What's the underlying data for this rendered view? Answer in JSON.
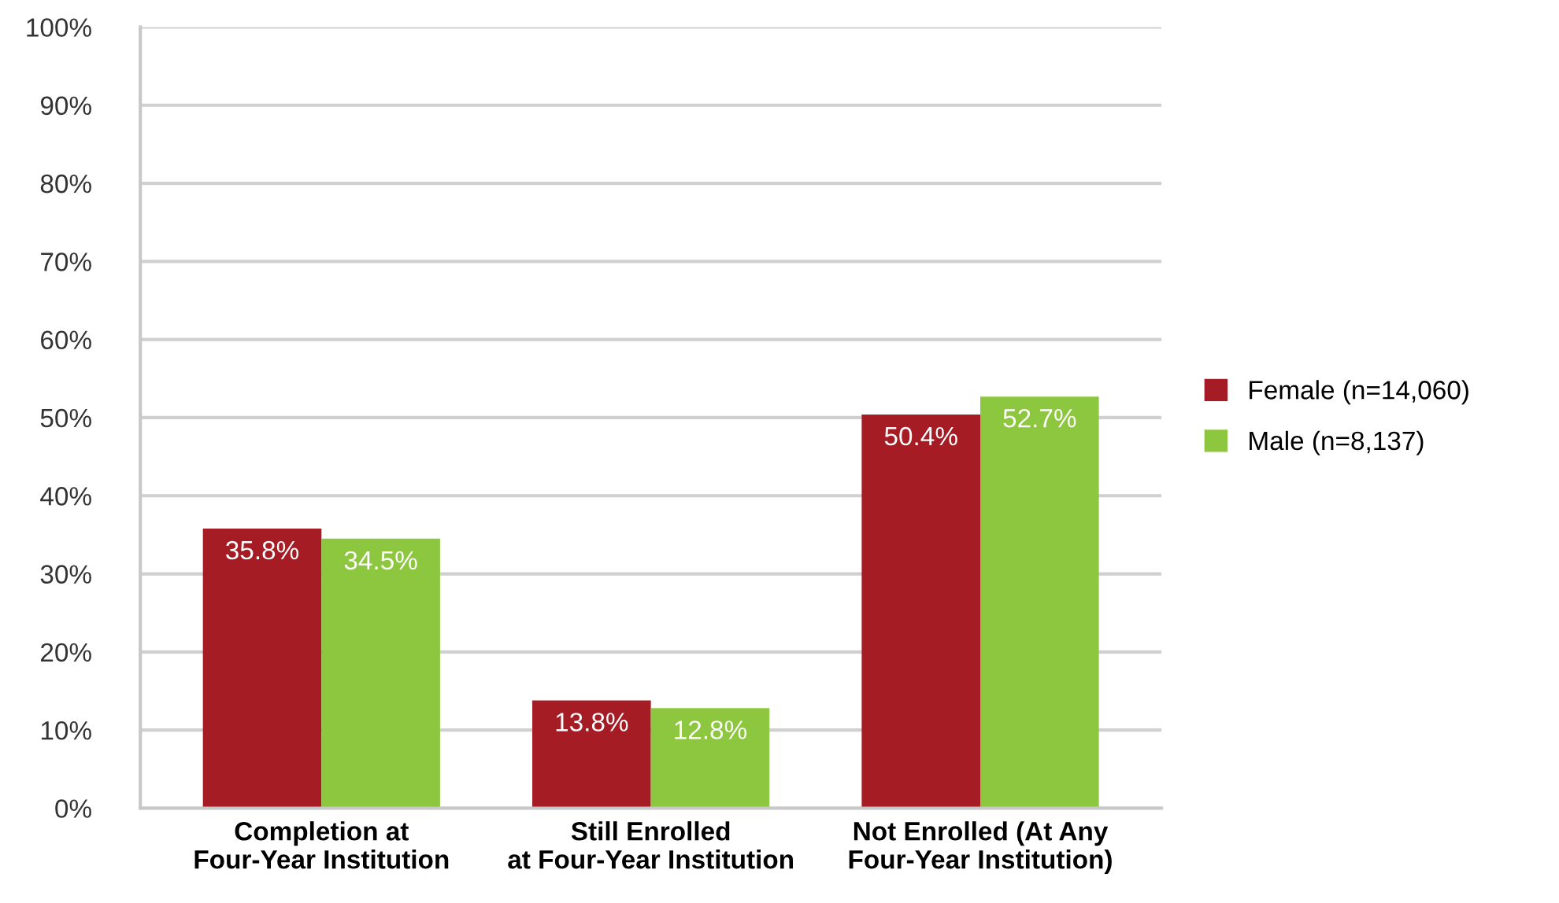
{
  "chart_data": {
    "type": "bar",
    "categories": [
      "Completion at\nFour-Year Institution",
      "Still Enrolled\nat Four-Year Institution",
      "Not Enrolled (At Any\nFour-Year Institution)"
    ],
    "series": [
      {
        "name": "Female (n=14,060)",
        "color": "#a51c24",
        "values": [
          35.8,
          13.8,
          50.4
        ],
        "value_labels": [
          "35.8%",
          "13.8%",
          "50.4%"
        ]
      },
      {
        "name": "Male (n=8,137)",
        "color": "#8dc63f",
        "values": [
          34.5,
          12.8,
          52.7
        ],
        "value_labels": [
          "34.5%",
          "12.8%",
          "52.7%"
        ]
      }
    ],
    "ylim": [
      0,
      100
    ],
    "yticks": [
      {
        "value": 0,
        "label": "0%"
      },
      {
        "value": 10,
        "label": "10%"
      },
      {
        "value": 20,
        "label": "20%"
      },
      {
        "value": 30,
        "label": "30%"
      },
      {
        "value": 40,
        "label": "40%"
      },
      {
        "value": 50,
        "label": "50%"
      },
      {
        "value": 60,
        "label": "60%"
      },
      {
        "value": 70,
        "label": "70%"
      },
      {
        "value": 80,
        "label": "80%"
      },
      {
        "value": 90,
        "label": "90%"
      },
      {
        "value": 100,
        "label": "100%"
      }
    ],
    "grid": "y",
    "legend": "right"
  }
}
